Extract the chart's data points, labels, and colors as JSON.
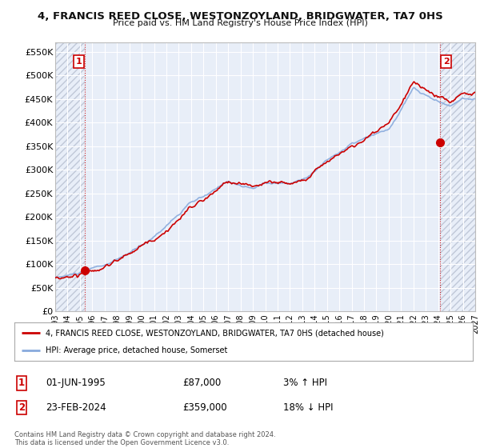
{
  "title": "4, FRANCIS REED CLOSE, WESTONZOYLAND, BRIDGWATER, TA7 0HS",
  "subtitle": "Price paid vs. HM Land Registry's House Price Index (HPI)",
  "background_color": "#ffffff",
  "plot_bg_color": "#e8eef8",
  "grid_color": "#ffffff",
  "hpi_color": "#88aadd",
  "price_color": "#cc0000",
  "sale1_date_x": 1995.42,
  "sale1_price": 87000,
  "sale1_label": "1",
  "sale2_date_x": 2024.14,
  "sale2_price": 359000,
  "sale2_label": "2",
  "ylim": [
    0,
    570000
  ],
  "xlim": [
    1993.0,
    2027.0
  ],
  "yticks": [
    0,
    50000,
    100000,
    150000,
    200000,
    250000,
    300000,
    350000,
    400000,
    450000,
    500000,
    550000
  ],
  "ytick_labels": [
    "£0",
    "£50K",
    "£100K",
    "£150K",
    "£200K",
    "£250K",
    "£300K",
    "£350K",
    "£400K",
    "£450K",
    "£500K",
    "£550K"
  ],
  "xticks": [
    1993,
    1994,
    1995,
    1996,
    1997,
    1998,
    1999,
    2000,
    2001,
    2002,
    2003,
    2004,
    2005,
    2006,
    2007,
    2008,
    2009,
    2010,
    2011,
    2012,
    2013,
    2014,
    2015,
    2016,
    2017,
    2018,
    2019,
    2020,
    2021,
    2022,
    2023,
    2024,
    2025,
    2026,
    2027
  ],
  "legend_entries": [
    "4, FRANCIS REED CLOSE, WESTONZOYLAND, BRIDGWATER, TA7 0HS (detached house)",
    "HPI: Average price, detached house, Somerset"
  ],
  "table_rows": [
    [
      "1",
      "01-JUN-1995",
      "£87,000",
      "3% ↑ HPI"
    ],
    [
      "2",
      "23-FEB-2024",
      "£359,000",
      "18% ↓ HPI"
    ]
  ],
  "footer": "Contains HM Land Registry data © Crown copyright and database right 2024.\nThis data is licensed under the Open Government Licence v3.0."
}
